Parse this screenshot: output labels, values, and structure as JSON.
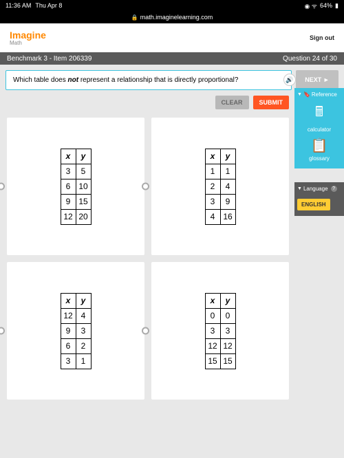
{
  "status": {
    "time": "11:36 AM",
    "day": "Thu Apr 8",
    "battery": "64%"
  },
  "url": "math.imaginelearning.com",
  "brand": {
    "name": "Imagine",
    "sub": "Math"
  },
  "signout": "Sign out",
  "benchmark": {
    "title": "Benchmark 3 - Item 206339",
    "progress": "Question 24 of 30"
  },
  "question": "Which table does not represent a relationship that is directly proportional?",
  "buttons": {
    "next": "NEXT ►",
    "clear": "CLEAR",
    "submit": "SUBMIT"
  },
  "tables": {
    "a": {
      "header": [
        "x",
        "y"
      ],
      "rows": [
        [
          "3",
          "5"
        ],
        [
          "6",
          "10"
        ],
        [
          "9",
          "15"
        ],
        [
          "12",
          "20"
        ]
      ]
    },
    "b": {
      "header": [
        "x",
        "y"
      ],
      "rows": [
        [
          "1",
          "1"
        ],
        [
          "2",
          "4"
        ],
        [
          "3",
          "9"
        ],
        [
          "4",
          "16"
        ]
      ]
    },
    "c": {
      "header": [
        "x",
        "y"
      ],
      "rows": [
        [
          "12",
          "4"
        ],
        [
          "9",
          "3"
        ],
        [
          "6",
          "2"
        ],
        [
          "3",
          "1"
        ]
      ]
    },
    "d": {
      "header": [
        "x",
        "y"
      ],
      "rows": [
        [
          "0",
          "0"
        ],
        [
          "3",
          "3"
        ],
        [
          "12",
          "12"
        ],
        [
          "15",
          "15"
        ]
      ]
    }
  },
  "reference": {
    "title": "Reference",
    "calc": "calculator",
    "gloss": "glossary"
  },
  "language": {
    "title": "Language",
    "button": "ENGLISH"
  },
  "question_emphasis": "not"
}
